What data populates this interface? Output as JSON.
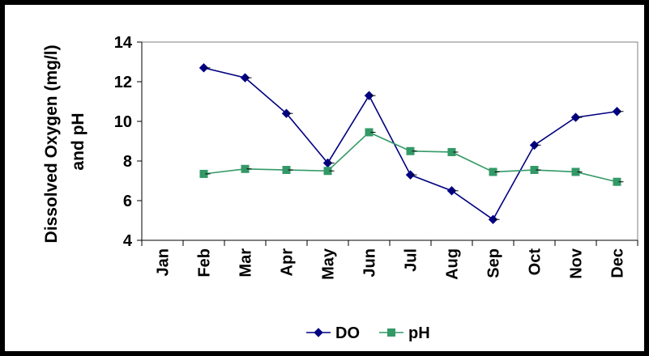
{
  "chart_data": {
    "type": "line",
    "categories": [
      "Jan",
      "Feb",
      "Mar",
      "Apr",
      "May",
      "Jun",
      "Jul",
      "Aug",
      "Sep",
      "Oct",
      "Nov",
      "Dec"
    ],
    "series": [
      {
        "name": "DO",
        "values": [
          null,
          12.7,
          12.2,
          10.4,
          7.9,
          11.3,
          7.3,
          6.5,
          5.05,
          8.8,
          10.2,
          10.5
        ],
        "color": "#000080",
        "marker": "diamond"
      },
      {
        "name": "pH",
        "values": [
          null,
          7.35,
          7.6,
          7.55,
          7.5,
          9.45,
          8.5,
          8.45,
          7.45,
          7.55,
          7.45,
          6.95
        ],
        "color": "#339966",
        "marker": "square"
      }
    ],
    "title": "",
    "xlabel": "",
    "ylabel": "Dissolved Oxygen (mg/l) and pH",
    "ylim": [
      4,
      14
    ],
    "yticks": [
      4,
      6,
      8,
      10,
      12,
      14
    ],
    "legend_position": "bottom",
    "grid": false
  }
}
